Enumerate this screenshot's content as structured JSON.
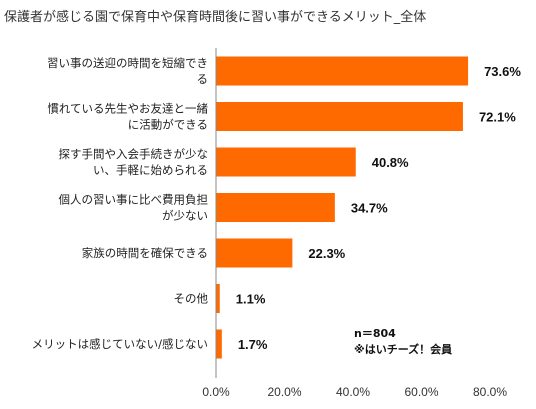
{
  "chart_data": {
    "type": "bar",
    "orientation": "horizontal",
    "title": "保護者が感じる園で保育中や保育時間後に習い事ができるメリット_全体",
    "categories": [
      [
        "習い事の送迎の時間を短縮でき",
        "る"
      ],
      [
        "慣れている先生やお友達と一緒",
        "に活動ができる"
      ],
      [
        "探す手間や入会手続きが少な",
        "い、手軽に始められる"
      ],
      [
        "個人の習い事に比べ費用負担",
        "が少ない"
      ],
      [
        "家族の時間を確保できる"
      ],
      [
        "その他"
      ],
      [
        "メリットは感じていない/感じない"
      ]
    ],
    "values": [
      73.6,
      72.1,
      40.8,
      34.7,
      22.3,
      1.1,
      1.7
    ],
    "value_labels": [
      "73.6%",
      "72.1%",
      "40.8%",
      "34.7%",
      "22.3%",
      "1.1%",
      "1.7%"
    ],
    "xlim": [
      0,
      80
    ],
    "ticks": [
      0,
      20,
      40,
      60,
      80
    ],
    "tick_labels": [
      "0.0%",
      "20.0%",
      "40.0%",
      "60.0%",
      "80.0%"
    ],
    "bar_color": "#FF6A00",
    "grid": false
  },
  "note": {
    "line1": "n＝804",
    "line2": "※はいチーズ！会員"
  }
}
